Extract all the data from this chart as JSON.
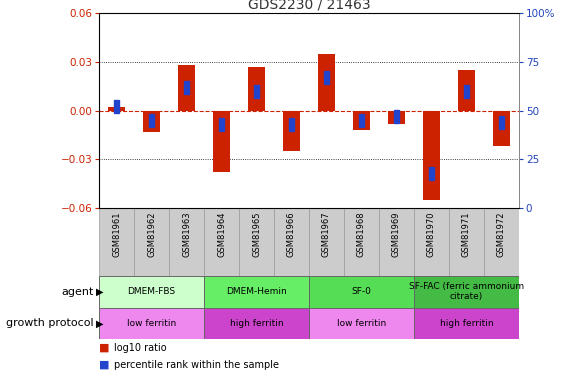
{
  "title": "GDS2230 / 21463",
  "samples": [
    "GSM81961",
    "GSM81962",
    "GSM81963",
    "GSM81964",
    "GSM81965",
    "GSM81966",
    "GSM81967",
    "GSM81968",
    "GSM81969",
    "GSM81970",
    "GSM81971",
    "GSM81972"
  ],
  "log10_ratio": [
    0.002,
    -0.013,
    0.028,
    -0.038,
    0.027,
    -0.025,
    0.035,
    -0.012,
    -0.008,
    -0.055,
    0.025,
    -0.022
  ],
  "percentile_rank": [
    52,
    45,
    62,
    43,
    60,
    43,
    67,
    45,
    47,
    18,
    60,
    44
  ],
  "ylim_left": [
    -0.06,
    0.06
  ],
  "yticks_left": [
    -0.06,
    -0.03,
    0,
    0.03,
    0.06
  ],
  "ylim_right": [
    0,
    100
  ],
  "yticks_right": [
    0,
    25,
    50,
    75,
    100
  ],
  "agent_groups": [
    {
      "label": "DMEM-FBS",
      "start": 0,
      "end": 3,
      "color": "#ccffcc"
    },
    {
      "label": "DMEM-Hemin",
      "start": 3,
      "end": 6,
      "color": "#66ee66"
    },
    {
      "label": "SF-0",
      "start": 6,
      "end": 9,
      "color": "#55dd55"
    },
    {
      "label": "SF-FAC (ferric ammonium\ncitrate)",
      "start": 9,
      "end": 12,
      "color": "#44bb44"
    }
  ],
  "protocol_groups": [
    {
      "label": "low ferritin",
      "start": 0,
      "end": 3,
      "color": "#ee88ee"
    },
    {
      "label": "high ferritin",
      "start": 3,
      "end": 6,
      "color": "#cc44cc"
    },
    {
      "label": "low ferritin",
      "start": 6,
      "end": 9,
      "color": "#ee88ee"
    },
    {
      "label": "high ferritin",
      "start": 9,
      "end": 12,
      "color": "#cc44cc"
    }
  ],
  "bar_color": "#cc2200",
  "blue_color": "#2244cc",
  "bar_width": 0.5,
  "left_axis_color": "#cc2200",
  "right_axis_color": "#2244bb",
  "sample_bg_color": "#cccccc",
  "zero_line_color": "#cc2200",
  "dot_line_color": "#000000"
}
